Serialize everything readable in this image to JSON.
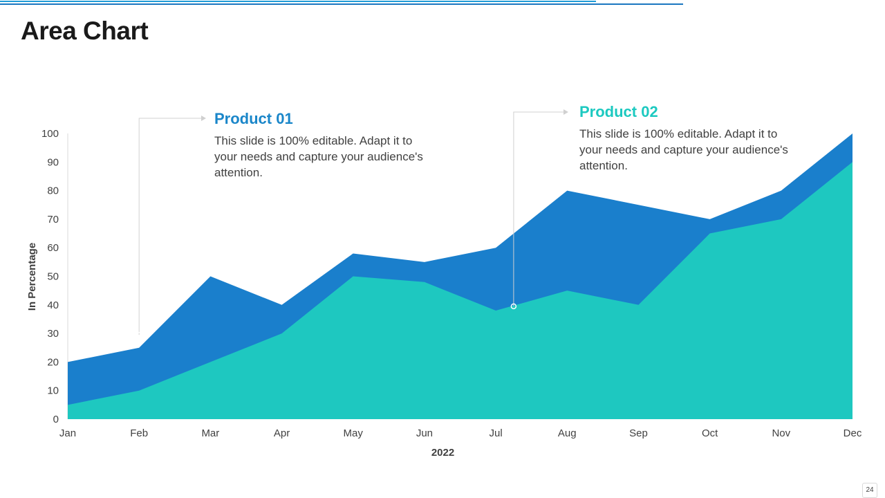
{
  "slide": {
    "title": "Area Chart",
    "page_number": "24"
  },
  "callouts": [
    {
      "title": "Product 01",
      "text": "This slide is 100% editable. Adapt it to your needs and capture your audience's attention.",
      "color": "#1a86c9",
      "anchor_month": "Feb",
      "anchor_value": 29.5
    },
    {
      "title": "Product 02",
      "text": "This slide is 100% editable. Adapt it to your needs and capture your audience's attention.",
      "color": "#1cc9c0",
      "anchor_month": "Jul",
      "anchor_value": 39.5
    }
  ],
  "colors": {
    "accent_light": "#1f9bd6",
    "accent_dark": "#1a76c0",
    "product_01": "#1a7fcc",
    "product_02": "#1ec8c0",
    "axis_text": "#404040",
    "axis_line": "#d9d9d9"
  },
  "chart_data": {
    "type": "area",
    "title": "",
    "categories": [
      "Jan",
      "Feb",
      "Mar",
      "Apr",
      "May",
      "Jun",
      "Jul",
      "Aug",
      "Sep",
      "Oct",
      "Nov",
      "Dec"
    ],
    "series": [
      {
        "name": "Product 01",
        "values": [
          20,
          25,
          50,
          40,
          58,
          55,
          60,
          80,
          75,
          70,
          80,
          100
        ]
      },
      {
        "name": "Product 02",
        "values": [
          5,
          10,
          20,
          30,
          50,
          48,
          38,
          45,
          40,
          65,
          70,
          90
        ]
      }
    ],
    "xlabel": "2022",
    "ylabel": "In Percentage",
    "ylim": [
      0,
      100
    ],
    "yticks": [
      0,
      10,
      20,
      30,
      40,
      50,
      60,
      70,
      80,
      90,
      100
    ],
    "grid": false,
    "legend": "none"
  }
}
